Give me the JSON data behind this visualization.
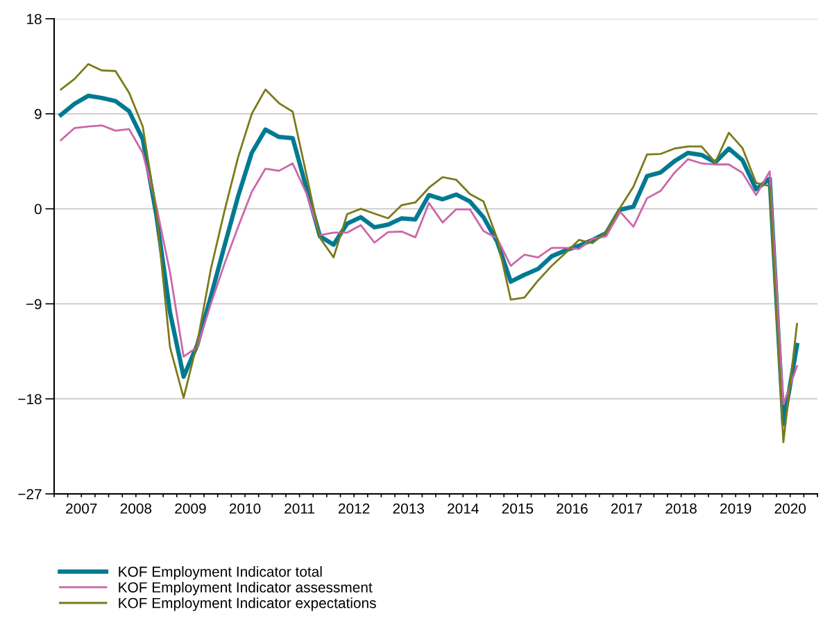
{
  "chart_data": {
    "type": "line",
    "x": [
      2007.125,
      2007.375,
      2007.625,
      2007.875,
      2008.125,
      2008.375,
      2008.625,
      2008.875,
      2009.125,
      2009.375,
      2009.625,
      2009.875,
      2010.125,
      2010.375,
      2010.625,
      2010.875,
      2011.125,
      2011.375,
      2011.625,
      2011.875,
      2012.125,
      2012.375,
      2012.625,
      2012.875,
      2013.125,
      2013.375,
      2013.625,
      2013.875,
      2014.125,
      2014.375,
      2014.625,
      2014.875,
      2015.125,
      2015.375,
      2015.625,
      2015.875,
      2016.125,
      2016.375,
      2016.625,
      2016.875,
      2017.125,
      2017.375,
      2017.625,
      2017.875,
      2018.125,
      2018.375,
      2018.625,
      2018.875,
      2019.125,
      2019.375,
      2019.625,
      2019.875,
      2020.125,
      2020.375,
      2020.625
    ],
    "series": [
      {
        "name": "KOF Employment Indicator total",
        "color": "#007a91",
        "values": [
          8.9,
          9.95,
          10.7,
          10.5,
          10.2,
          9.25,
          6.6,
          -0.6,
          -9.8,
          -15.9,
          -12.9,
          -8.3,
          -3.5,
          1.2,
          5.3,
          7.5,
          6.8,
          6.7,
          2.0,
          -2.6,
          -3.4,
          -1.4,
          -0.8,
          -1.75,
          -1.5,
          -0.9,
          -1.0,
          1.3,
          0.9,
          1.35,
          0.7,
          -0.8,
          -3.1,
          -6.9,
          -6.25,
          -5.7,
          -4.5,
          -3.95,
          -3.5,
          -2.95,
          -2.3,
          -0.1,
          0.2,
          3.1,
          3.45,
          4.5,
          5.3,
          5.1,
          4.4,
          5.7,
          4.6,
          1.85,
          2.85,
          -20.4,
          -12.9
        ]
      },
      {
        "name": "KOF Employment Indicator assessment",
        "color": "#cc66aa",
        "values": [
          6.5,
          7.65,
          7.8,
          7.9,
          7.4,
          7.55,
          5.3,
          0.25,
          -6.0,
          -14.0,
          -13.1,
          -9.0,
          -5.2,
          -1.7,
          1.6,
          3.8,
          3.6,
          4.3,
          1.5,
          -2.5,
          -2.25,
          -2.25,
          -1.55,
          -3.2,
          -2.2,
          -2.15,
          -2.7,
          0.55,
          -1.3,
          -0.05,
          -0.05,
          -2.1,
          -2.8,
          -5.4,
          -4.35,
          -4.6,
          -3.7,
          -3.7,
          -3.8,
          -2.85,
          -2.6,
          -0.25,
          -1.7,
          1.0,
          1.7,
          3.4,
          4.7,
          4.3,
          4.2,
          4.2,
          3.4,
          1.3,
          3.55,
          -18.5,
          -14.9
        ]
      },
      {
        "name": "KOF Employment Indicator expectations",
        "color": "#7a7a1a",
        "values": [
          11.3,
          12.3,
          13.7,
          13.1,
          13.05,
          11.0,
          7.8,
          -0.3,
          -13.1,
          -17.9,
          -12.7,
          -5.7,
          -0.2,
          4.9,
          9.0,
          11.3,
          10.0,
          9.2,
          3.3,
          -2.75,
          -4.6,
          -0.5,
          0.0,
          -0.45,
          -0.9,
          0.35,
          0.6,
          2.0,
          3.0,
          2.75,
          1.4,
          0.7,
          -2.8,
          -8.6,
          -8.4,
          -6.8,
          -5.4,
          -4.2,
          -2.95,
          -3.25,
          -2.2,
          0.05,
          2.1,
          5.15,
          5.2,
          5.7,
          5.9,
          5.9,
          4.4,
          7.2,
          5.75,
          2.45,
          2.15,
          -22.1,
          -10.9
        ]
      }
    ],
    "xlim": [
      2007,
      2021
    ],
    "xticks": [
      {
        "value": 2007,
        "label": null
      },
      {
        "value": 2007.25,
        "label": null
      },
      {
        "value": 2007.5,
        "label": "2007"
      },
      {
        "value": 2007.75,
        "label": null
      },
      {
        "value": 2008,
        "label": null
      },
      {
        "value": 2008.25,
        "label": null
      },
      {
        "value": 2008.5,
        "label": "2008"
      },
      {
        "value": 2008.75,
        "label": null
      },
      {
        "value": 2009,
        "label": null
      },
      {
        "value": 2009.25,
        "label": null
      },
      {
        "value": 2009.5,
        "label": "2009"
      },
      {
        "value": 2009.75,
        "label": null
      },
      {
        "value": 2010,
        "label": null
      },
      {
        "value": 2010.25,
        "label": null
      },
      {
        "value": 2010.5,
        "label": "2010"
      },
      {
        "value": 2010.75,
        "label": null
      },
      {
        "value": 2011,
        "label": null
      },
      {
        "value": 2011.25,
        "label": null
      },
      {
        "value": 2011.5,
        "label": "2011"
      },
      {
        "value": 2011.75,
        "label": null
      },
      {
        "value": 2012,
        "label": null
      },
      {
        "value": 2012.25,
        "label": null
      },
      {
        "value": 2012.5,
        "label": "2012"
      },
      {
        "value": 2012.75,
        "label": null
      },
      {
        "value": 2013,
        "label": null
      },
      {
        "value": 2013.25,
        "label": null
      },
      {
        "value": 2013.5,
        "label": "2013"
      },
      {
        "value": 2013.75,
        "label": null
      },
      {
        "value": 2014,
        "label": null
      },
      {
        "value": 2014.25,
        "label": null
      },
      {
        "value": 2014.5,
        "label": "2014"
      },
      {
        "value": 2014.75,
        "label": null
      },
      {
        "value": 2015,
        "label": null
      },
      {
        "value": 2015.25,
        "label": null
      },
      {
        "value": 2015.5,
        "label": "2015"
      },
      {
        "value": 2015.75,
        "label": null
      },
      {
        "value": 2016,
        "label": null
      },
      {
        "value": 2016.25,
        "label": null
      },
      {
        "value": 2016.5,
        "label": "2016"
      },
      {
        "value": 2016.75,
        "label": null
      },
      {
        "value": 2017,
        "label": null
      },
      {
        "value": 2017.25,
        "label": null
      },
      {
        "value": 2017.5,
        "label": "2017"
      },
      {
        "value": 2017.75,
        "label": null
      },
      {
        "value": 2018,
        "label": null
      },
      {
        "value": 2018.25,
        "label": null
      },
      {
        "value": 2018.5,
        "label": "2018"
      },
      {
        "value": 2018.75,
        "label": null
      },
      {
        "value": 2019,
        "label": null
      },
      {
        "value": 2019.25,
        "label": null
      },
      {
        "value": 2019.5,
        "label": "2019"
      },
      {
        "value": 2019.75,
        "label": null
      },
      {
        "value": 2020,
        "label": null
      },
      {
        "value": 2020.25,
        "label": null
      },
      {
        "value": 2020.5,
        "label": "2020"
      },
      {
        "value": 2020.75,
        "label": null
      },
      {
        "value": 2021,
        "label": null
      }
    ],
    "ylim": [
      -27,
      18
    ],
    "yticks": [
      {
        "value": -27,
        "label": "−27"
      },
      {
        "value": -18,
        "label": "−18"
      },
      {
        "value": -9,
        "label": "−9"
      },
      0,
      9,
      18
    ],
    "grid": "y",
    "legend": "bottom left",
    "marker": "none",
    "line_style": "solid"
  }
}
